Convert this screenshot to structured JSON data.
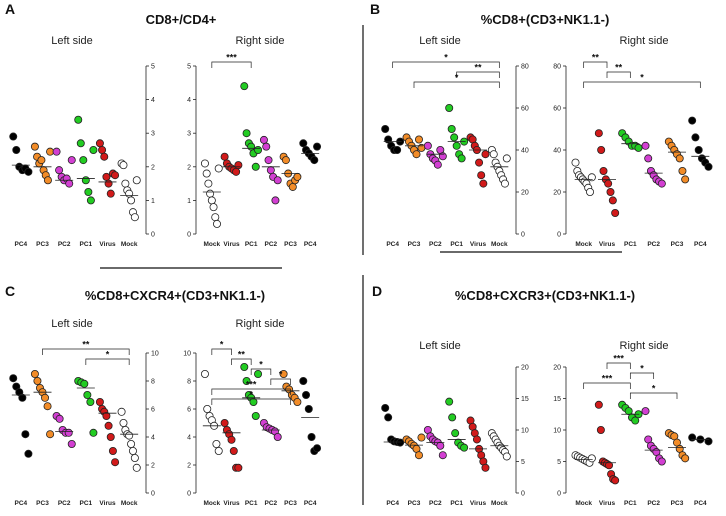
{
  "panels": [
    {
      "letter": "A",
      "title": "CD8+/CD4+"
    },
    {
      "letter": "B",
      "title": "%CD8+(CD3+NK1.1-)"
    },
    {
      "letter": "C",
      "title": "%CD8+CXCR4+(CD3+NK1.1-)"
    },
    {
      "letter": "D",
      "title": "%CD8+CXCR3+(CD3+NK1.1-)"
    }
  ],
  "side_labels": {
    "left": "Left side",
    "right": "Right side"
  },
  "colors": {
    "PC4": "#000000",
    "PC3": "#f28c28",
    "PC2": "#d23fd2",
    "PC1": "#22cc22",
    "Virus": "#d11a1a",
    "Mock": "#ffffff",
    "outline": "#222222"
  },
  "chart_data": [
    {
      "panel": "A",
      "side": "left",
      "type": "scatter",
      "ylim": [
        0,
        5
      ],
      "yticks": [
        0,
        1,
        2,
        3,
        4,
        5
      ],
      "yaxis_side": "right",
      "categories": [
        "PC4",
        "PC3",
        "PC2",
        "PC1",
        "Virus",
        "Mock"
      ],
      "values": [
        [
          2.9,
          2.5,
          2.0,
          1.9,
          1.95,
          1.85
        ],
        [
          2.6,
          2.3,
          2.1,
          2.2,
          1.9,
          1.75,
          1.6,
          2.45
        ],
        [
          2.45,
          1.9,
          1.7,
          1.6,
          1.65,
          1.5,
          2.2
        ],
        [
          3.4,
          2.7,
          2.2,
          1.6,
          1.25,
          1.0,
          2.5
        ],
        [
          2.7,
          2.5,
          2.3,
          1.7,
          1.5,
          1.2,
          1.8,
          1.75
        ],
        [
          2.1,
          2.05,
          1.5,
          1.3,
          1.2,
          1.0,
          0.65,
          0.5,
          1.6
        ]
      ],
      "means": [
        2.05,
        2.0,
        1.6,
        1.65,
        1.55,
        1.15
      ],
      "significance": []
    },
    {
      "panel": "A",
      "side": "right",
      "type": "scatter",
      "ylim": [
        0,
        5
      ],
      "yticks": [
        0,
        1,
        2,
        3,
        4,
        5
      ],
      "yaxis_side": "left",
      "categories": [
        "Mock",
        "Virus",
        "PC1",
        "PC2",
        "PC3",
        "PC4"
      ],
      "values": [
        [
          2.1,
          1.8,
          1.5,
          1.2,
          1.0,
          0.8,
          0.5,
          0.3,
          1.95
        ],
        [
          2.3,
          2.1,
          2.0,
          1.95,
          1.9,
          1.85,
          2.05
        ],
        [
          4.4,
          3.0,
          2.7,
          2.6,
          2.4,
          2.0,
          2.5
        ],
        [
          2.8,
          2.6,
          2.2,
          1.9,
          1.7,
          1.0,
          1.6
        ],
        [
          2.3,
          2.2,
          1.8,
          1.5,
          1.4,
          1.6,
          1.7
        ],
        [
          2.7,
          2.5,
          2.4,
          2.3,
          2.2,
          2.6
        ]
      ],
      "means": [
        1.25,
        2.0,
        2.55,
        2.0,
        1.8,
        2.4
      ],
      "significance": [
        {
          "from": 0,
          "to": 2,
          "label": "***"
        }
      ]
    },
    {
      "panel": "B",
      "side": "left",
      "type": "scatter",
      "ylim": [
        0,
        80
      ],
      "yticks": [
        0,
        20,
        40,
        60,
        80
      ],
      "yaxis_side": "right",
      "categories": [
        "PC4",
        "PC3",
        "PC2",
        "PC1",
        "Virus",
        "Mock"
      ],
      "values": [
        [
          50,
          45,
          42,
          40,
          40,
          44
        ],
        [
          46,
          44,
          42,
          40,
          38,
          45,
          41
        ],
        [
          42,
          38,
          36,
          35,
          33,
          40,
          37
        ],
        [
          60,
          50,
          46,
          42,
          38,
          36,
          44
        ],
        [
          46,
          45,
          42,
          40,
          34,
          28,
          24,
          38
        ],
        [
          40,
          38,
          34,
          32,
          30,
          28,
          26,
          24,
          36
        ]
      ],
      "means": [
        44,
        42,
        38,
        44,
        40,
        32
      ],
      "significance": [
        {
          "from": 0,
          "to": 5,
          "label": "*"
        },
        {
          "from": 3,
          "to": 5,
          "label": "**"
        },
        {
          "from": 1,
          "to": 5,
          "label": "*"
        }
      ]
    },
    {
      "panel": "B",
      "side": "right",
      "type": "scatter",
      "ylim": [
        0,
        80
      ],
      "yticks": [
        0,
        20,
        40,
        60,
        80
      ],
      "yaxis_side": "left",
      "categories": [
        "Mock",
        "Virus",
        "PC1",
        "PC2",
        "PC3",
        "PC4"
      ],
      "values": [
        [
          34,
          30,
          28,
          27,
          26,
          25,
          24,
          22,
          20,
          27
        ],
        [
          48,
          40,
          30,
          26,
          24,
          20,
          16,
          10
        ],
        [
          48,
          46,
          44,
          42,
          42,
          41
        ],
        [
          42,
          36,
          30,
          28,
          26,
          25,
          24
        ],
        [
          44,
          42,
          40,
          38,
          36,
          30,
          26
        ],
        [
          54,
          46,
          40,
          36,
          34,
          32
        ]
      ],
      "means": [
        26,
        26,
        43,
        29,
        39,
        37
      ],
      "significance": [
        {
          "from": 0,
          "to": 1,
          "label": "**"
        },
        {
          "from": 1,
          "to": 2,
          "label": "**"
        },
        {
          "from": 0,
          "to": 5,
          "label": "*"
        }
      ]
    },
    {
      "panel": "C",
      "side": "left",
      "type": "scatter",
      "ylim": [
        0,
        10
      ],
      "yticks": [
        0,
        2,
        4,
        6,
        8,
        10
      ],
      "yaxis_side": "right",
      "categories": [
        "PC4",
        "PC3",
        "PC2",
        "PC1",
        "Virus",
        "Mock"
      ],
      "values": [
        [
          8.2,
          7.6,
          7.2,
          6.8,
          4.2,
          2.8
        ],
        [
          8.5,
          8.0,
          7.5,
          7.2,
          6.8,
          6.2,
          4.2
        ],
        [
          5.5,
          5.3,
          4.5,
          4.3,
          4.3,
          3.5
        ],
        [
          8.0,
          7.9,
          7.8,
          7.0,
          6.5,
          4.3
        ],
        [
          6.5,
          6.0,
          5.8,
          5.5,
          4.8,
          4.0,
          3.0,
          2.2
        ],
        [
          5.8,
          5.0,
          4.5,
          4.2,
          4.1,
          3.5,
          3.0,
          2.5,
          1.8
        ]
      ],
      "means": [
        7.0,
        7.2,
        4.4,
        7.5,
        5.7,
        4.2
      ],
      "significance": [
        {
          "from": 1,
          "to": 5,
          "label": "**"
        },
        {
          "from": 3,
          "to": 5,
          "label": "*"
        }
      ]
    },
    {
      "panel": "C",
      "side": "right",
      "type": "scatter",
      "ylim": [
        0,
        10
      ],
      "yticks": [
        0,
        2,
        4,
        6,
        8,
        10
      ],
      "yaxis_side": "left",
      "categories": [
        "Mock",
        "Virus",
        "PC1",
        "PC2",
        "PC3",
        "PC4"
      ],
      "values": [
        [
          8.5,
          6.0,
          5.5,
          5.2,
          4.8,
          3.5,
          3.0
        ],
        [
          5.0,
          4.5,
          4.2,
          3.8,
          3.0,
          1.8,
          1.8
        ],
        [
          9.0,
          8.0,
          7.0,
          6.8,
          6.5,
          5.5,
          8.5
        ],
        [
          5.0,
          4.7,
          4.6,
          4.5,
          4.4,
          4.0
        ],
        [
          8.5,
          7.6,
          7.4,
          7.0,
          6.8,
          6.5
        ],
        [
          8.0,
          7.0,
          6.0,
          4.0,
          3.0,
          3.2
        ]
      ],
      "means": [
        4.8,
        4.3,
        6.8,
        4.5,
        7.3,
        5.4
      ],
      "significance": [
        {
          "from": 0,
          "to": 1,
          "label": "*"
        },
        {
          "from": 1,
          "to": 2,
          "label": "**"
        },
        {
          "from": 2,
          "to": 3,
          "label": "*"
        },
        {
          "from": 3,
          "to": 4,
          "label": "*"
        },
        {
          "from": 0,
          "to": 4,
          "label": "***"
        },
        {
          "from": 0,
          "to": 4,
          "label": "*"
        }
      ]
    },
    {
      "panel": "D",
      "side": "left",
      "type": "scatter",
      "ylim": [
        0,
        20
      ],
      "yticks": [
        0,
        5,
        10,
        15,
        20
      ],
      "yaxis_side": "right",
      "categories": [
        "PC4",
        "PC3",
        "PC2",
        "PC1",
        "Virus",
        "Mock"
      ],
      "values": [
        [
          13.5,
          12,
          8.5,
          8.2,
          8.1,
          8.0
        ],
        [
          8.5,
          8.2,
          7.8,
          7.5,
          7.0,
          6.0,
          8.8
        ],
        [
          10,
          9,
          8.5,
          8.2,
          8.0,
          7.5,
          6.0
        ],
        [
          14.5,
          12,
          9.5,
          8,
          7.5,
          7.2
        ],
        [
          11.5,
          10.5,
          9.5,
          8.5,
          7.0,
          6.0,
          5.0,
          4.0
        ],
        [
          9.5,
          9.0,
          8.5,
          8.0,
          7.5,
          7.2,
          6.8,
          6.5,
          5.8
        ]
      ],
      "means": [
        8.1,
        7.6,
        8.0,
        8.5,
        7.0,
        7.5
      ],
      "significance": []
    },
    {
      "panel": "D",
      "side": "right",
      "type": "scatter",
      "ylim": [
        0,
        20
      ],
      "yticks": [
        0,
        5,
        10,
        15,
        20
      ],
      "yaxis_side": "left",
      "categories": [
        "Mock",
        "Virus",
        "PC1",
        "PC2",
        "PC3",
        "PC4"
      ],
      "values": [
        [
          6.0,
          5.8,
          5.6,
          5.4,
          5.2,
          5.0,
          4.8,
          5.5
        ],
        [
          14,
          10,
          5,
          4.8,
          4.6,
          4.4,
          3.0,
          2.2,
          2.0
        ],
        [
          14,
          13.5,
          13,
          12,
          11.5,
          12.5
        ],
        [
          13,
          8.5,
          7.5,
          7,
          6.5,
          5.5,
          5.0
        ],
        [
          9.5,
          9.2,
          9.0,
          8.0,
          7.0,
          6.0,
          5.5
        ],
        [
          8.8,
          8.5,
          8.2
        ]
      ],
      "means": [
        5.3,
        4.8,
        12.5,
        6.8,
        7.2,
        8.5
      ],
      "significance": [
        {
          "from": 1,
          "to": 2,
          "label": "***"
        },
        {
          "from": 2,
          "to": 3,
          "label": "*"
        },
        {
          "from": 0,
          "to": 2,
          "label": "***"
        },
        {
          "from": 2,
          "to": 4,
          "label": "*"
        }
      ]
    }
  ]
}
